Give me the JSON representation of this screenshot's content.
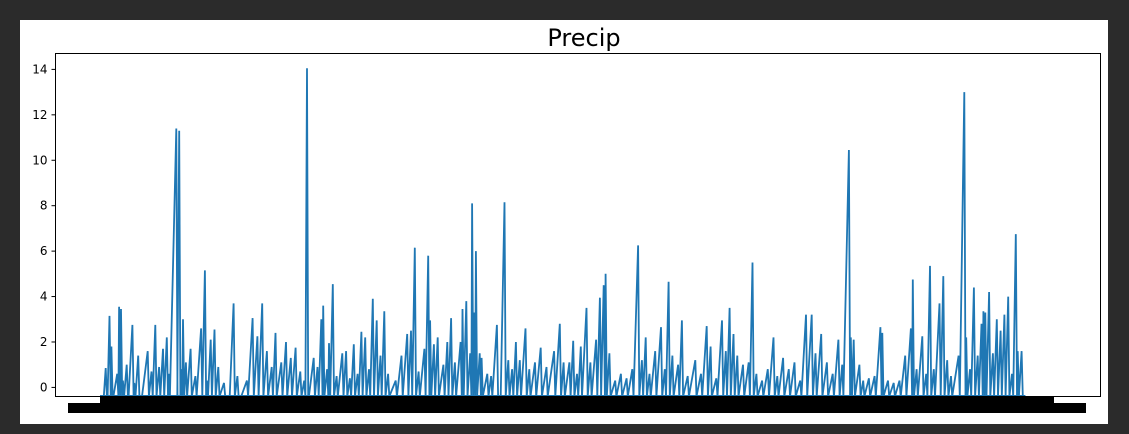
{
  "window": {
    "background": "#2b2b2b",
    "figure_background": "#ffffff"
  },
  "chart_data": {
    "type": "line",
    "title": "Precip",
    "xlabel": "",
    "ylabel": "",
    "ylim": [
      -0.4,
      14.7
    ],
    "yticks": [
      0,
      2,
      4,
      6,
      8,
      10,
      12,
      14
    ],
    "yticklabels": [
      "0",
      "2",
      "4",
      "6",
      "8",
      "10",
      "12",
      "14"
    ],
    "xticklabels_note": "x tick labels are densely overlapping and unreadable (rendered as a solid black band)",
    "grid": false,
    "legend": "none",
    "series": [
      {
        "color": "#1f77b4",
        "baseline": -0.4,
        "points": [
          [
            0.0,
            -0.4
          ],
          [
            0.004,
            -0.4
          ],
          [
            0.006,
            0.85
          ],
          [
            0.008,
            -0.4
          ],
          [
            0.01,
            3.15
          ],
          [
            0.012,
            1.8
          ],
          [
            0.014,
            -0.4
          ],
          [
            0.018,
            0.6
          ],
          [
            0.02,
            3.55
          ],
          [
            0.022,
            3.45
          ],
          [
            0.024,
            0.3
          ],
          [
            0.028,
            1.0
          ],
          [
            0.03,
            -0.4
          ],
          [
            0.034,
            2.75
          ],
          [
            0.036,
            0.2
          ],
          [
            0.04,
            1.4
          ],
          [
            0.044,
            -0.4
          ],
          [
            0.05,
            1.6
          ],
          [
            0.054,
            0.7
          ],
          [
            0.058,
            2.75
          ],
          [
            0.062,
            0.9
          ],
          [
            0.066,
            1.7
          ],
          [
            0.07,
            2.2
          ],
          [
            0.072,
            0.6
          ],
          [
            0.08,
            11.4
          ],
          [
            0.081,
            -0.4
          ],
          [
            0.083,
            11.3
          ],
          [
            0.085,
            0.8
          ],
          [
            0.087,
            3.0
          ],
          [
            0.09,
            1.1
          ],
          [
            0.095,
            1.7
          ],
          [
            0.1,
            0.5
          ],
          [
            0.106,
            2.6
          ],
          [
            0.11,
            5.15
          ],
          [
            0.112,
            0.3
          ],
          [
            0.116,
            2.1
          ],
          [
            0.12,
            2.55
          ],
          [
            0.124,
            0.9
          ],
          [
            0.13,
            0.2
          ],
          [
            0.136,
            -0.4
          ],
          [
            0.14,
            3.7
          ],
          [
            0.144,
            0.5
          ],
          [
            0.148,
            -0.4
          ],
          [
            0.154,
            0.3
          ],
          [
            0.16,
            3.05
          ],
          [
            0.165,
            2.25
          ],
          [
            0.17,
            3.7
          ],
          [
            0.175,
            1.6
          ],
          [
            0.18,
            0.9
          ],
          [
            0.184,
            2.4
          ],
          [
            0.19,
            1.1
          ],
          [
            0.195,
            2.0
          ],
          [
            0.2,
            1.3
          ],
          [
            0.205,
            1.75
          ],
          [
            0.21,
            0.7
          ],
          [
            0.214,
            0.3
          ],
          [
            0.217,
            14.05
          ],
          [
            0.219,
            -0.4
          ],
          [
            0.224,
            1.3
          ],
          [
            0.228,
            0.9
          ],
          [
            0.232,
            3.0
          ],
          [
            0.234,
            3.6
          ],
          [
            0.238,
            0.8
          ],
          [
            0.24,
            1.95
          ],
          [
            0.244,
            4.55
          ],
          [
            0.248,
            0.5
          ],
          [
            0.254,
            1.5
          ],
          [
            0.258,
            1.6
          ],
          [
            0.262,
            0.4
          ],
          [
            0.266,
            1.9
          ],
          [
            0.27,
            0.6
          ],
          [
            0.274,
            2.45
          ],
          [
            0.278,
            2.2
          ],
          [
            0.282,
            0.8
          ],
          [
            0.286,
            3.9
          ],
          [
            0.29,
            2.95
          ],
          [
            0.294,
            1.4
          ],
          [
            0.298,
            3.35
          ],
          [
            0.302,
            0.6
          ],
          [
            0.31,
            0.3
          ],
          [
            0.316,
            1.4
          ],
          [
            0.322,
            2.35
          ],
          [
            0.326,
            2.5
          ],
          [
            0.33,
            6.15
          ],
          [
            0.334,
            0.7
          ],
          [
            0.34,
            1.7
          ],
          [
            0.344,
            5.8
          ],
          [
            0.346,
            2.95
          ],
          [
            0.35,
            1.9
          ],
          [
            0.354,
            2.2
          ],
          [
            0.36,
            1.0
          ],
          [
            0.364,
            2.0
          ],
          [
            0.368,
            3.05
          ],
          [
            0.372,
            1.1
          ],
          [
            0.378,
            2.0
          ],
          [
            0.38,
            3.45
          ],
          [
            0.384,
            3.8
          ],
          [
            0.388,
            1.5
          ],
          [
            0.39,
            8.1
          ],
          [
            0.392,
            3.3
          ],
          [
            0.394,
            6.0
          ],
          [
            0.398,
            1.5
          ],
          [
            0.4,
            1.3
          ],
          [
            0.406,
            0.6
          ],
          [
            0.41,
            0.5
          ],
          [
            0.416,
            2.75
          ],
          [
            0.42,
            -0.4
          ],
          [
            0.424,
            8.15
          ],
          [
            0.428,
            1.2
          ],
          [
            0.432,
            0.8
          ],
          [
            0.436,
            2.0
          ],
          [
            0.44,
            1.2
          ],
          [
            0.446,
            2.6
          ],
          [
            0.45,
            0.8
          ],
          [
            0.456,
            1.1
          ],
          [
            0.462,
            1.75
          ],
          [
            0.468,
            0.9
          ],
          [
            0.476,
            1.6
          ],
          [
            0.482,
            2.8
          ],
          [
            0.486,
            1.1
          ],
          [
            0.492,
            1.1
          ],
          [
            0.496,
            2.05
          ],
          [
            0.5,
            0.6
          ],
          [
            0.504,
            1.8
          ],
          [
            0.51,
            3.5
          ],
          [
            0.514,
            1.1
          ],
          [
            0.52,
            2.1
          ],
          [
            0.524,
            3.95
          ],
          [
            0.528,
            4.5
          ],
          [
            0.53,
            5.0
          ],
          [
            0.534,
            1.5
          ],
          [
            0.54,
            0.3
          ],
          [
            0.546,
            0.6
          ],
          [
            0.552,
            0.4
          ],
          [
            0.558,
            0.8
          ],
          [
            0.564,
            6.25
          ],
          [
            0.568,
            1.2
          ],
          [
            0.572,
            2.2
          ],
          [
            0.576,
            0.6
          ],
          [
            0.582,
            1.6
          ],
          [
            0.588,
            2.65
          ],
          [
            0.592,
            0.8
          ],
          [
            0.596,
            4.65
          ],
          [
            0.6,
            1.4
          ],
          [
            0.606,
            1.0
          ],
          [
            0.61,
            2.95
          ],
          [
            0.616,
            0.5
          ],
          [
            0.624,
            1.2
          ],
          [
            0.63,
            0.6
          ],
          [
            0.636,
            2.7
          ],
          [
            0.64,
            1.8
          ],
          [
            0.646,
            0.4
          ],
          [
            0.652,
            2.95
          ],
          [
            0.656,
            1.6
          ],
          [
            0.66,
            3.5
          ],
          [
            0.664,
            2.35
          ],
          [
            0.668,
            1.4
          ],
          [
            0.674,
            1.0
          ],
          [
            0.68,
            1.1
          ],
          [
            0.684,
            5.5
          ],
          [
            0.688,
            0.6
          ],
          [
            0.694,
            0.3
          ],
          [
            0.7,
            0.8
          ],
          [
            0.706,
            2.2
          ],
          [
            0.71,
            0.5
          ],
          [
            0.716,
            1.3
          ],
          [
            0.722,
            0.8
          ],
          [
            0.728,
            1.1
          ],
          [
            0.734,
            0.3
          ],
          [
            0.74,
            3.2
          ],
          [
            0.746,
            3.2
          ],
          [
            0.75,
            1.5
          ],
          [
            0.756,
            2.35
          ],
          [
            0.762,
            1.1
          ],
          [
            0.768,
            0.6
          ],
          [
            0.774,
            2.1
          ],
          [
            0.778,
            1.0
          ],
          [
            0.785,
            10.45
          ],
          [
            0.787,
            2.2
          ],
          [
            0.79,
            2.1
          ],
          [
            0.796,
            1.0
          ],
          [
            0.8,
            0.3
          ],
          [
            0.806,
            0.4
          ],
          [
            0.812,
            0.5
          ],
          [
            0.818,
            2.65
          ],
          [
            0.82,
            2.4
          ],
          [
            0.826,
            0.3
          ],
          [
            0.832,
            0.2
          ],
          [
            0.838,
            0.3
          ],
          [
            0.844,
            1.4
          ],
          [
            0.85,
            2.6
          ],
          [
            0.852,
            4.75
          ],
          [
            0.856,
            0.8
          ],
          [
            0.862,
            2.25
          ],
          [
            0.866,
            0.6
          ],
          [
            0.87,
            5.35
          ],
          [
            0.874,
            0.8
          ],
          [
            0.88,
            3.7
          ],
          [
            0.884,
            4.9
          ],
          [
            0.888,
            1.2
          ],
          [
            0.892,
            0.5
          ],
          [
            0.9,
            1.4
          ],
          [
            0.906,
            13.0
          ],
          [
            0.908,
            2.2
          ],
          [
            0.912,
            0.8
          ],
          [
            0.916,
            4.4
          ],
          [
            0.92,
            1.4
          ],
          [
            0.924,
            2.8
          ],
          [
            0.926,
            3.35
          ],
          [
            0.928,
            3.3
          ],
          [
            0.932,
            4.2
          ],
          [
            0.936,
            1.5
          ],
          [
            0.94,
            3.0
          ],
          [
            0.944,
            2.5
          ],
          [
            0.948,
            3.2
          ],
          [
            0.952,
            4.0
          ],
          [
            0.956,
            0.6
          ],
          [
            0.96,
            6.75
          ],
          [
            0.962,
            1.6
          ],
          [
            0.966,
            1.6
          ],
          [
            0.97,
            -0.4
          ]
        ]
      }
    ]
  }
}
